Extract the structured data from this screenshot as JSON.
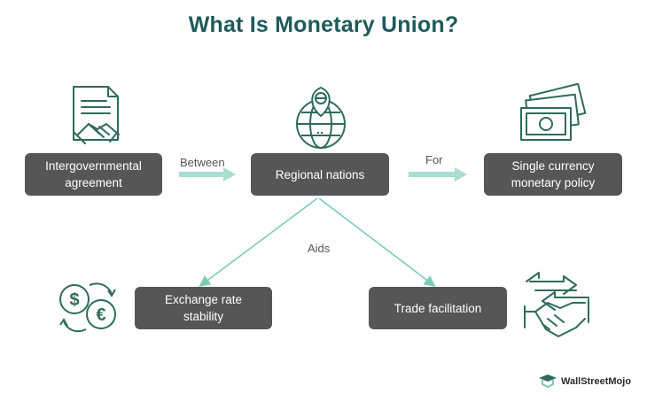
{
  "title": "What Is Monetary Union?",
  "nodes": {
    "agreement": "Intergovernmental\nagreement",
    "regional": "Regional nations",
    "currency": "Single currency\nmonetary policy",
    "exchange": "Exchange rate\nstability",
    "trade": "Trade facilitation"
  },
  "edge_labels": {
    "between": "Between",
    "for": "For",
    "aids": "Aids"
  },
  "brand": "WallStreetMojo",
  "colors": {
    "title": "#1f5a5a",
    "box": "#565656",
    "accent": "#7ccbb8",
    "icon": "#2f6b5a"
  },
  "icons": {
    "agreement": "document-handshake-icon",
    "regional": "globe-pin-icon",
    "currency": "banknote-stack-icon",
    "exchange": "currency-exchange-icon",
    "trade": "arrows-handshake-icon"
  }
}
